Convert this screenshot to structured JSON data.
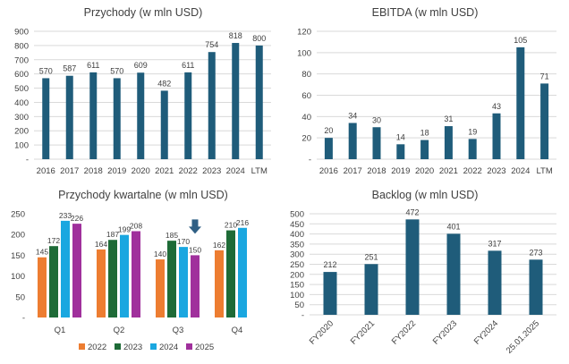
{
  "colors": {
    "primary_bar": "#1f5c7a",
    "series_2022": "#ed7d31",
    "series_2023": "#1e6b37",
    "series_2024": "#1aa7e0",
    "series_2025": "#a0309c",
    "arrow": "#2f5f84"
  },
  "chart_data": [
    {
      "type": "bar",
      "title": "Przychody (w mln USD)",
      "categories": [
        "2016",
        "2017",
        "2018",
        "2019",
        "2020",
        "2021",
        "2022",
        "2023",
        "2024",
        "LTM"
      ],
      "values": [
        570,
        587,
        611,
        570,
        609,
        482,
        611,
        754,
        818,
        800
      ],
      "value_labels": [
        "570",
        "587",
        "611",
        "570",
        "609",
        "482",
        "611",
        "754",
        "818",
        "800"
      ],
      "ylim": [
        0,
        900
      ],
      "yticks": [
        0,
        100,
        200,
        300,
        400,
        500,
        600,
        700,
        800,
        900
      ],
      "ytick_labels": [
        "-",
        "100",
        "200",
        "300",
        "400",
        "500",
        "600",
        "700",
        "800",
        "900"
      ],
      "grid": true,
      "xlabel": "",
      "ylabel": ""
    },
    {
      "type": "bar",
      "title": "EBITDA (w mln USD)",
      "categories": [
        "2016",
        "2017",
        "2018",
        "2019",
        "2020",
        "2021",
        "2022",
        "2023",
        "2024",
        "LTM"
      ],
      "values": [
        20,
        34,
        30,
        14,
        18,
        31,
        19,
        43,
        105,
        71
      ],
      "value_labels": [
        "20",
        "34",
        "30",
        "14",
        "18",
        "31",
        "19",
        "43",
        "105",
        "71"
      ],
      "ylim": [
        0,
        120
      ],
      "yticks": [
        0,
        20,
        40,
        60,
        80,
        100,
        120
      ],
      "ytick_labels": [
        "-",
        "20",
        "40",
        "60",
        "80",
        "100",
        "120"
      ],
      "grid": true,
      "xlabel": "",
      "ylabel": ""
    },
    {
      "type": "bar",
      "title": "Przychody kwartalne (w mln USD)",
      "categories": [
        "Q1",
        "Q2",
        "Q3",
        "Q4"
      ],
      "series": [
        {
          "name": "2022",
          "values": [
            145,
            164,
            140,
            162
          ],
          "value_labels": [
            "145",
            "164",
            "140",
            "162"
          ]
        },
        {
          "name": "2023",
          "values": [
            172,
            187,
            185,
            210
          ],
          "value_labels": [
            "172",
            "187",
            "185",
            "210"
          ]
        },
        {
          "name": "2024",
          "values": [
            233,
            199,
            170,
            216
          ],
          "value_labels": [
            "233",
            "199",
            "170",
            "216"
          ]
        },
        {
          "name": "2025",
          "values": [
            226,
            208,
            150,
            null
          ],
          "value_labels": [
            "226",
            "208",
            "150",
            ""
          ]
        }
      ],
      "ylim": [
        0,
        250
      ],
      "yticks": [
        0,
        50,
        100,
        150,
        200,
        250
      ],
      "ytick_labels": [
        "-",
        "50",
        "100",
        "150",
        "200",
        "250"
      ],
      "grid": false,
      "legend": "bottom",
      "annotation": "down arrow above Q3 2025",
      "xlabel": "",
      "ylabel": ""
    },
    {
      "type": "bar",
      "title": "Backlog (w mln USD)",
      "categories": [
        "FY2020",
        "FY2021",
        "FY2022",
        "FY2023",
        "FY2024",
        "25.01.2025"
      ],
      "values": [
        212,
        251,
        472,
        401,
        317,
        273
      ],
      "value_labels": [
        "212",
        "251",
        "472",
        "401",
        "317",
        "273"
      ],
      "ylim": [
        0,
        500
      ],
      "yticks": [
        0,
        50,
        100,
        150,
        200,
        250,
        300,
        350,
        400,
        450,
        500
      ],
      "ytick_labels": [
        "-",
        "50",
        "100",
        "150",
        "200",
        "250",
        "300",
        "350",
        "400",
        "450",
        "500"
      ],
      "grid": true,
      "xtick_rotation": -45,
      "xlabel": "",
      "ylabel": ""
    }
  ]
}
